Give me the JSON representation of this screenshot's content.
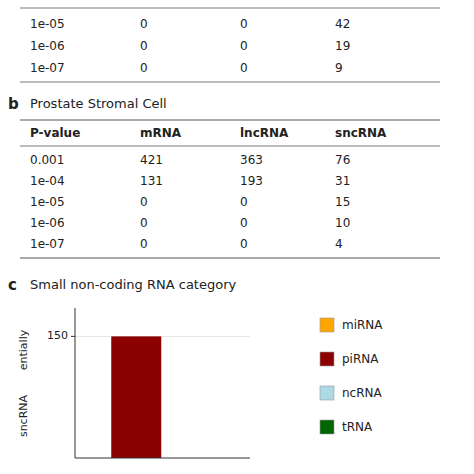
{
  "chart_data": [
    {
      "type": "table",
      "rows": [
        [
          "1e-05",
          "0",
          "0",
          "42"
        ],
        [
          "1e-06",
          "0",
          "0",
          "19"
        ],
        [
          "1e-07",
          "0",
          "0",
          "9"
        ]
      ]
    },
    {
      "type": "table",
      "label": "b",
      "title": "Prostate Stromal Cell",
      "headers": [
        "P-value",
        "mRNA",
        "lncRNA",
        "sncRNA"
      ],
      "rows": [
        [
          "0.001",
          "421",
          "363",
          "76"
        ],
        [
          "1e-04",
          "131",
          "193",
          "31"
        ],
        [
          "1e-05",
          "0",
          "0",
          "15"
        ],
        [
          "1e-06",
          "0",
          "0",
          "10"
        ],
        [
          "1e-07",
          "0",
          "0",
          "4"
        ]
      ]
    },
    {
      "type": "bar",
      "label": "c",
      "title": "Small non-coding RNA category",
      "categories": [
        null
      ],
      "series": [
        {
          "name": "miRNA",
          "color": "#FFA500",
          "values": [
            null
          ]
        },
        {
          "name": "piRNA",
          "color": "#8B0000",
          "values": [
            150
          ]
        },
        {
          "name": "ncRNA",
          "color": "#ADD8E6",
          "values": [
            null
          ]
        },
        {
          "name": "tRNA",
          "color": "#006400",
          "values": [
            null
          ]
        }
      ],
      "stacked": true,
      "ylim": [
        0,
        185
      ],
      "yticks": [
        150
      ],
      "annotations": [
        "entially",
        "sncRNA"
      ],
      "legend": "right"
    }
  ]
}
